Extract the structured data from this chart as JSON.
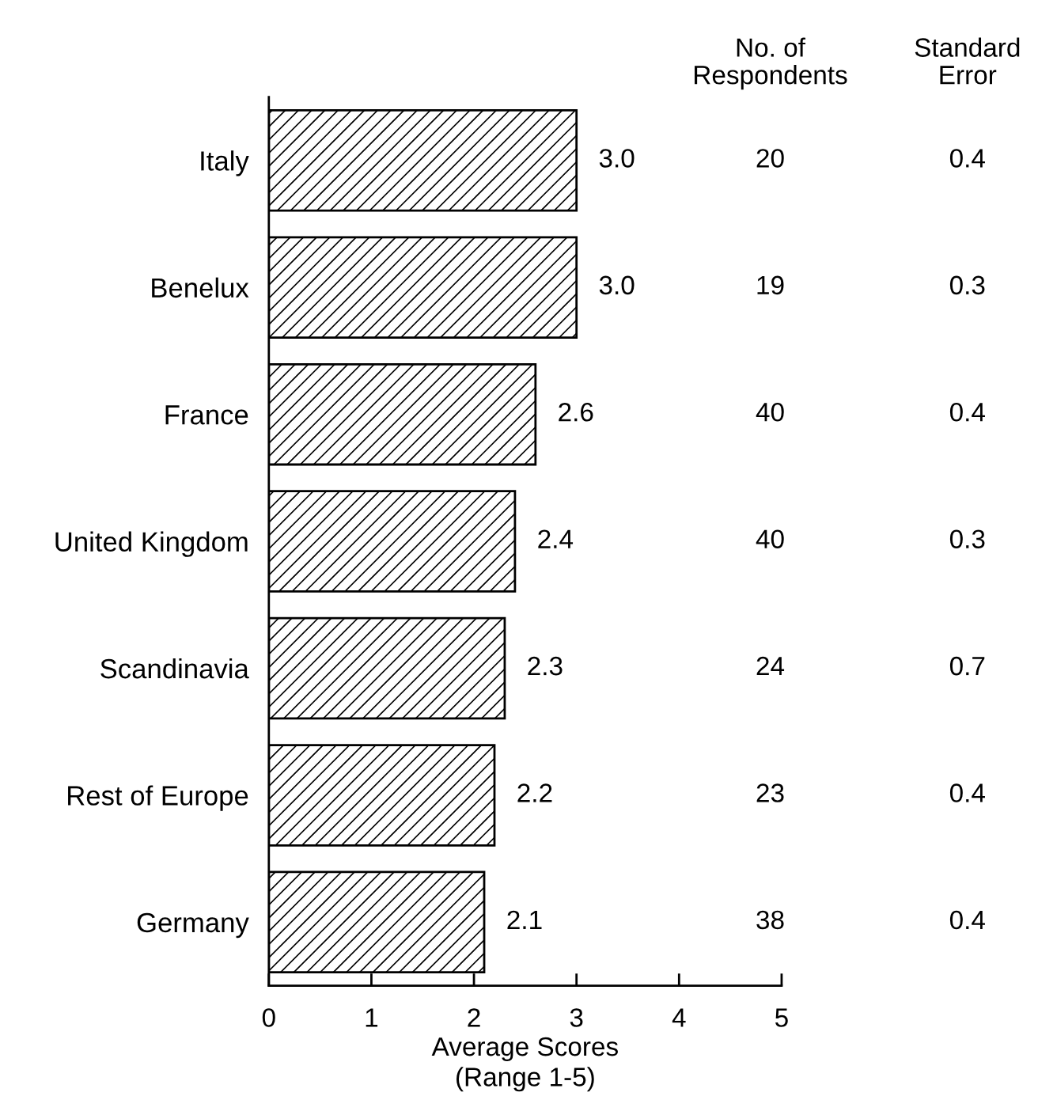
{
  "chart_data": {
    "type": "bar",
    "orientation": "horizontal",
    "categories": [
      "Italy",
      "Benelux",
      "France",
      "United Kingdom",
      "Scandinavia",
      "Rest of Europe",
      "Germany"
    ],
    "values": [
      3.0,
      3.0,
      2.6,
      2.4,
      2.3,
      2.2,
      2.1
    ],
    "value_labels": [
      "3.0",
      "3.0",
      "2.6",
      "2.4",
      "2.3",
      "2.2",
      "2.1"
    ],
    "color": "#000000",
    "xlim": [
      0,
      5
    ],
    "xticks": [
      0,
      1,
      2,
      3,
      4,
      5
    ],
    "xlabel": "Average Scores\n(Range 1-5)",
    "grid": false,
    "legend": false,
    "annotations": [
      "No. of\nRespondents",
      "Standard\nError",
      "20",
      "0.4",
      "19",
      "0.3",
      "40",
      "0.4",
      "40",
      "0.3",
      "24",
      "0.7",
      "23",
      "0.4",
      "38",
      "0.4"
    ]
  }
}
